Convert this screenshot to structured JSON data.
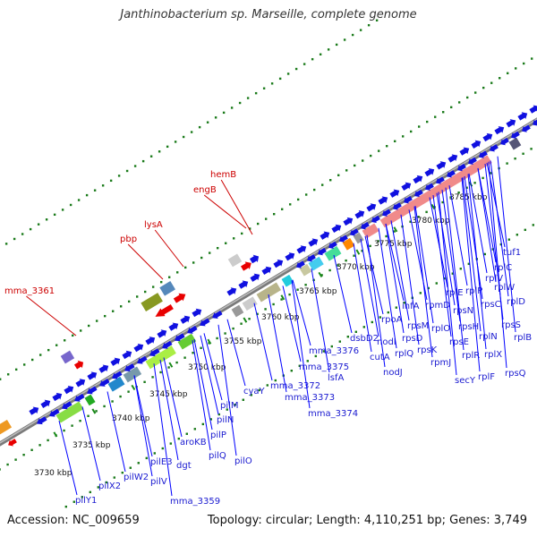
{
  "title": "Janthinobacterium sp. Marseille, complete genome",
  "footer": {
    "accession": "Accession: NC_009659",
    "info": "Topology: circular; Length: 4,110,251 bp; Genes: 3,749"
  },
  "ticks": [
    "3730 kbp",
    "3735 kbp",
    "3740 kbp",
    "3745 kbp",
    "3750 kbp",
    "3755 kbp",
    "3760 kbp",
    "3765 kbp",
    "3770 kbp",
    "3775 kbp",
    "3780 kbp",
    "3785 kbp"
  ],
  "highlighted_genes": [
    "mma_3361",
    "pbp",
    "lysA",
    "engB",
    "hemB"
  ],
  "genes": [
    "pilY1",
    "pilX2",
    "pilW2",
    "pilV",
    "mma_3359",
    "pilE3",
    "dgt",
    "aroKB",
    "pilQ",
    "pilO",
    "pilP",
    "pilN",
    "pilM",
    "cyaY",
    "mma_3372",
    "mma_3373",
    "mma_3374",
    "mma_3375",
    "mma_3376",
    "lsfA",
    "dsbD2",
    "cutA",
    "nodI",
    "nodJ",
    "rpoA",
    "rpsD",
    "rplQ",
    "rpsK",
    "rpsM",
    "infA",
    "rpmJ",
    "rplO",
    "rpmD",
    "rpsE",
    "secY",
    "rplR",
    "rplF",
    "rpsH",
    "rplE",
    "rpsN",
    "rplX",
    "rplN",
    "rpsQ",
    "rplP",
    "rpsC",
    "rplV",
    "rplB",
    "rpsS",
    "rplD",
    "rplW",
    "rplC",
    "tuf1"
  ],
  "colors": {
    "backbone": "#777777",
    "label_line": "#0000ff",
    "label_line_highlight": "#cc0000",
    "gene_blue": "#1010e0",
    "gene_red": "#e80000",
    "ribosomal_pink": "#f08a8a",
    "tick_mark": "#1a8a1a",
    "dot_ring": "#1a7a1a"
  }
}
